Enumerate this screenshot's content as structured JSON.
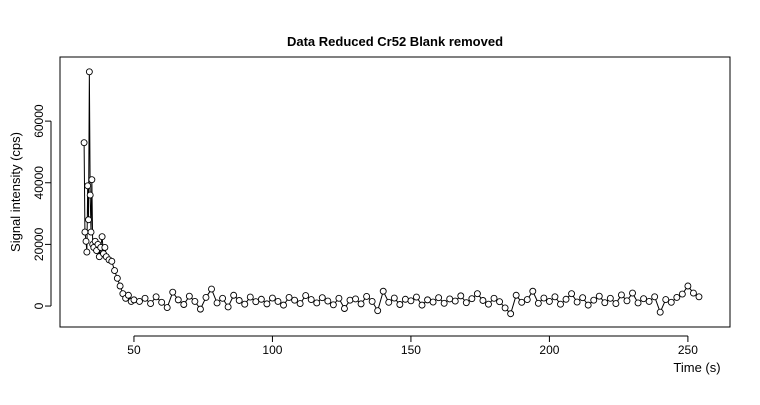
{
  "chart_data": {
    "type": "line-points",
    "title": "Data Reduced Cr52 Blank removed",
    "x_label": "Time (s)",
    "y_label": "Signal intensity (cps)",
    "color": "#000000",
    "xlim": [
      23.3,
      265.2
    ],
    "ylim": [
      -6800,
      80800
    ],
    "xticks": [
      50,
      100,
      150,
      200,
      250
    ],
    "yticks": [
      0,
      20000,
      40000,
      60000
    ],
    "x": [
      32.0,
      32.3,
      32.7,
      33.0,
      33.3,
      33.6,
      33.9,
      34.2,
      34.5,
      34.8,
      35.1,
      35.5,
      36,
      36.5,
      37,
      37.5,
      38,
      38.5,
      39,
      39.5,
      40,
      41,
      42,
      43,
      44,
      45,
      46,
      47,
      48,
      49,
      50,
      52,
      54,
      56,
      58,
      60,
      62,
      64,
      66,
      68,
      70,
      72,
      74,
      76,
      78,
      80,
      82,
      84,
      86,
      88,
      90,
      92,
      94,
      96,
      98,
      100,
      102,
      104,
      106,
      108,
      110,
      112,
      114,
      116,
      118,
      120,
      122,
      124,
      126,
      128,
      130,
      132,
      134,
      136,
      138,
      140,
      142,
      144,
      146,
      148,
      150,
      152,
      154,
      156,
      158,
      160,
      162,
      164,
      166,
      168,
      170,
      172,
      174,
      176,
      178,
      180,
      182,
      184,
      186,
      188,
      190,
      192,
      194,
      196,
      198,
      200,
      202,
      204,
      206,
      208,
      210,
      212,
      214,
      216,
      218,
      220,
      222,
      224,
      226,
      228,
      230,
      232,
      234,
      236,
      238,
      240,
      242,
      244,
      246,
      248,
      250,
      252,
      254
    ],
    "values": [
      53000,
      24000,
      21000,
      17500,
      39000,
      28000,
      76000,
      36000,
      24000,
      41000,
      20000,
      19000,
      21000,
      18000,
      20000,
      16000,
      19000,
      22500,
      17000,
      19000,
      16000,
      15000,
      14500,
      11500,
      9000,
      6500,
      4000,
      2500,
      3500,
      1500,
      2000,
      1500,
      2500,
      800,
      3000,
      1200,
      -500,
      4500,
      2000,
      500,
      3200,
      1500,
      -1000,
      2800,
      5500,
      1000,
      2500,
      -300,
      3500,
      1800,
      600,
      2900,
      1400,
      2200,
      700,
      2600,
      1500,
      300,
      2800,
      1900,
      800,
      3400,
      2100,
      1000,
      2700,
      1600,
      400,
      2500,
      -800,
      1900,
      2300,
      700,
      3100,
      1500,
      -1500,
      4800,
      1200,
      2600,
      500,
      2200,
      1700,
      2900,
      300,
      2000,
      1300,
      2700,
      900,
      2300,
      1600,
      3300,
      1100,
      2400,
      4000,
      1800,
      600,
      2500,
      1400,
      -600,
      -2500,
      3500,
      1200,
      2100,
      4800,
      900,
      2600,
      1500,
      3000,
      600,
      2200,
      4000,
      1300,
      2700,
      300,
      1900,
      3200,
      1100,
      2500,
      800,
      3600,
      1700,
      4200,
      1000,
      2400,
      1500,
      3000,
      -2000,
      2100,
      1200,
      2800,
      3900,
      6500,
      4200,
      3000
    ]
  }
}
